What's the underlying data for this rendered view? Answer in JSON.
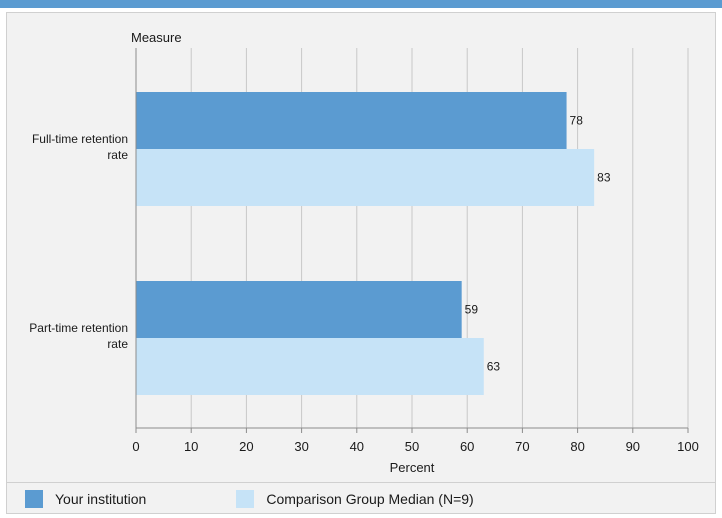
{
  "chart_data": {
    "type": "bar",
    "orientation": "horizontal",
    "title": "Measure",
    "xlabel": "Percent",
    "ylabel": "",
    "xlim": [
      0,
      100
    ],
    "xticks": [
      "0",
      "10",
      "20",
      "30",
      "40",
      "50",
      "60",
      "70",
      "80",
      "90",
      "100"
    ],
    "grid": true,
    "legend_position": "bottom",
    "categories": [
      [
        "Full-time retention",
        "rate"
      ],
      [
        "Part-time retention",
        "rate"
      ]
    ],
    "series": [
      {
        "name": "Your institution",
        "values": [
          78,
          59
        ],
        "color": "#5b9bd1"
      },
      {
        "name": "Comparison Group Median (N=9)",
        "values": [
          83,
          63
        ],
        "color": "#c6e3f7"
      }
    ]
  }
}
